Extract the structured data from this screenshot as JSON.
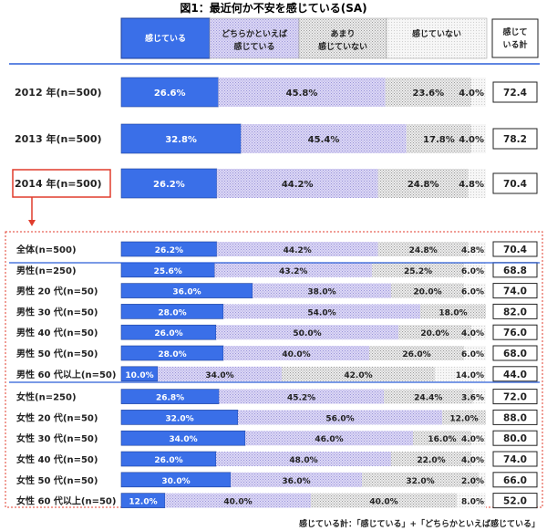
{
  "chart_data": {
    "type": "bar",
    "stacked": "horizontal-100",
    "title": "図1：最近何か不安を感じている(SA)",
    "legend": [
      "感じている",
      "どちらかといえば感じている",
      "あまり感じていない",
      "感じていない"
    ],
    "total_header": "感じている計",
    "colors": {
      "c1": "#3a6fe8",
      "c2": "#d6d2f4",
      "c3": "#e2e2e2",
      "c4": "#f4f4f4"
    },
    "annual": [
      {
        "label": "2012 年(n=500)",
        "values": [
          26.6,
          45.8,
          23.6,
          4.0
        ],
        "labels": [
          "26.6%",
          "45.8%",
          "23.6%",
          "4.0%"
        ],
        "total": "72.4"
      },
      {
        "label": "2013 年(n=500)",
        "values": [
          32.8,
          45.4,
          17.8,
          4.0
        ],
        "labels": [
          "32.8%",
          "45.4%",
          "17.8%",
          "4.0%"
        ],
        "total": "78.2"
      },
      {
        "label": "2014 年(n=500)",
        "values": [
          26.2,
          44.2,
          24.8,
          4.8
        ],
        "labels": [
          "26.2%",
          "44.2%",
          "24.8%",
          "4.8%"
        ],
        "total": "70.4"
      }
    ],
    "breakdown": [
      {
        "label": "全体(n=500)",
        "values": [
          26.2,
          44.2,
          24.8,
          4.8
        ],
        "labels": [
          "26.2%",
          "44.2%",
          "24.8%",
          "4.8%"
        ],
        "total": "70.4"
      },
      {
        "label": "男性(n=250)",
        "values": [
          25.6,
          43.2,
          25.2,
          6.0
        ],
        "labels": [
          "25.6%",
          "43.2%",
          "25.2%",
          "6.0%"
        ],
        "total": "68.8"
      },
      {
        "label": "男性 20 代(n=50)",
        "values": [
          36.0,
          38.0,
          20.0,
          6.0
        ],
        "labels": [
          "36.0%",
          "38.0%",
          "20.0%",
          "6.0%"
        ],
        "total": "74.0"
      },
      {
        "label": "男性 30 代(n=50)",
        "values": [
          28.0,
          54.0,
          18.0,
          0
        ],
        "labels": [
          "28.0%",
          "54.0%",
          "18.0%",
          ""
        ],
        "total": "82.0"
      },
      {
        "label": "男性 40 代(n=50)",
        "values": [
          26.0,
          50.0,
          20.0,
          4.0
        ],
        "labels": [
          "26.0%",
          "50.0%",
          "20.0%",
          "4.0%"
        ],
        "total": "76.0"
      },
      {
        "label": "男性 50 代(n=50)",
        "values": [
          28.0,
          40.0,
          26.0,
          6.0
        ],
        "labels": [
          "28.0%",
          "40.0%",
          "26.0%",
          "6.0%"
        ],
        "total": "68.0"
      },
      {
        "label": "男性 60 代以上(n=50)",
        "values": [
          10.0,
          34.0,
          42.0,
          14.0
        ],
        "labels": [
          "10.0%",
          "34.0%",
          "42.0%",
          "14.0%"
        ],
        "total": "44.0"
      },
      {
        "label": "女性(n=250)",
        "values": [
          26.8,
          45.2,
          24.4,
          3.6
        ],
        "labels": [
          "26.8%",
          "45.2%",
          "24.4%",
          "3.6%"
        ],
        "total": "72.0"
      },
      {
        "label": "女性 20 代(n=50)",
        "values": [
          32.0,
          56.0,
          12.0,
          0
        ],
        "labels": [
          "32.0%",
          "56.0%",
          "12.0%",
          ""
        ],
        "total": "88.0"
      },
      {
        "label": "女性 30 代(n=50)",
        "values": [
          34.0,
          46.0,
          16.0,
          4.0
        ],
        "labels": [
          "34.0%",
          "46.0%",
          "16.0%",
          "4.0%"
        ],
        "total": "80.0"
      },
      {
        "label": "女性 40 代(n=50)",
        "values": [
          26.0,
          48.0,
          22.0,
          4.0
        ],
        "labels": [
          "26.0%",
          "48.0%",
          "22.0%",
          "4.0%"
        ],
        "total": "74.0"
      },
      {
        "label": "女性 50 代(n=50)",
        "values": [
          30.0,
          36.0,
          32.0,
          2.0
        ],
        "labels": [
          "30.0%",
          "36.0%",
          "32.0%",
          "2.0%"
        ],
        "total": "66.0"
      },
      {
        "label": "女性 60 代以上(n=50)",
        "values": [
          12.0,
          40.0,
          40.0,
          8.0
        ],
        "labels": [
          "12.0%",
          "40.0%",
          "40.0%",
          "8.0%"
        ],
        "total": "52.0"
      }
    ],
    "footnote": "感じている計：「感じている」+「どちらかといえば感じている」"
  }
}
